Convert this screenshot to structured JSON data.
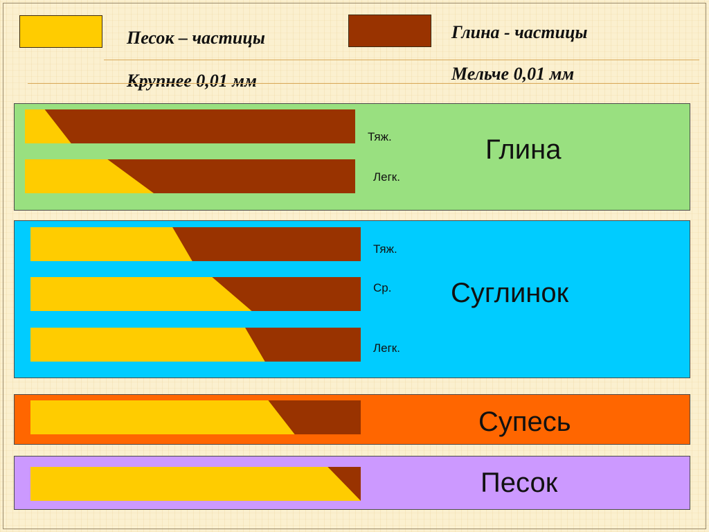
{
  "colors": {
    "sand": "#ffcc00",
    "clay": "#993300",
    "glina_panel": "#99e080",
    "suglinok_panel": "#00ccff",
    "supes_panel": "#ff6600",
    "pesok_panel": "#cc99ff"
  },
  "legend": {
    "sand_line1": "Песок – частицы",
    "sand_line2": "Крупнее 0,01 мм",
    "clay_line1": "Глина - частицы",
    "clay_line2": "Мельче 0,01 мм"
  },
  "panels": [
    {
      "title": "Глина",
      "bars": [
        {
          "label": "Тяж.",
          "sand_top": 0.06,
          "sand_bottom": 0.14
        },
        {
          "label": "Легк.",
          "sand_top": 0.25,
          "sand_bottom": 0.39
        }
      ]
    },
    {
      "title": "Суглинок",
      "bars": [
        {
          "label": "Тяж.",
          "sand_top": 0.43,
          "sand_bottom": 0.49
        },
        {
          "label": "Ср.",
          "sand_top": 0.55,
          "sand_bottom": 0.67
        },
        {
          "label": "Легк.",
          "sand_top": 0.65,
          "sand_bottom": 0.71
        }
      ]
    },
    {
      "title": "Супесь",
      "bars": [
        {
          "label": "",
          "sand_top": 0.72,
          "sand_bottom": 0.8
        }
      ]
    },
    {
      "title": "Песок",
      "bars": [
        {
          "label": "",
          "sand_top": 0.9,
          "sand_bottom": 1.0
        }
      ]
    }
  ]
}
